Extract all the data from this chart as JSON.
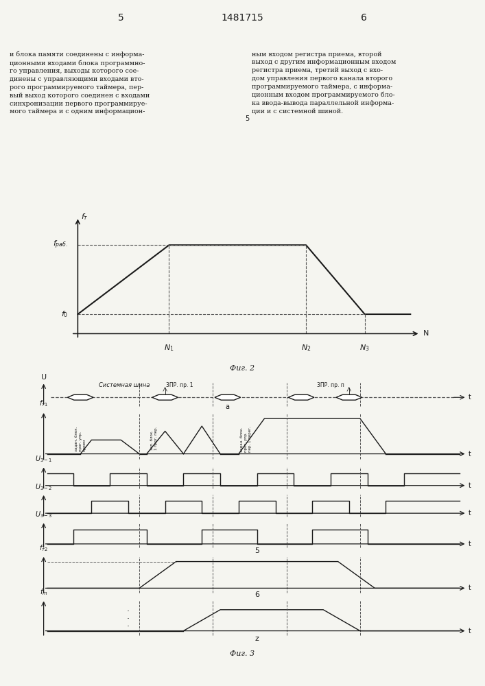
{
  "page_title": "1481715",
  "page_nums": [
    "5",
    "6"
  ],
  "text_left": "и блока памяти соединены с информа-\nционными входами блока программно-\nго управления, выходы которого сое-\nдинены с управляющими входами вто-\nрого программируемого таймера, пер-\nвый выход которого соединен с входами\nсинхронизации первого программируе-\nмого таймера и с одним информацион-",
  "text_right": "ным входом регистра приема, второй\nвыход с другим информационным входом\nрегистра приема, третий выход с вхо-\nдом управления первого канала второго\nпрограммируемого таймера, с информа-\nционным входом программируемого бло-\nка ввода-вывода параллельной информа-\nции и с системной шиной.",
  "fig2_caption": "Фиг. 2",
  "fig3_caption": "Фиг. 3",
  "bg_color": "#f5f5f0",
  "line_color": "#1a1a1a",
  "dashed_color": "#555555"
}
